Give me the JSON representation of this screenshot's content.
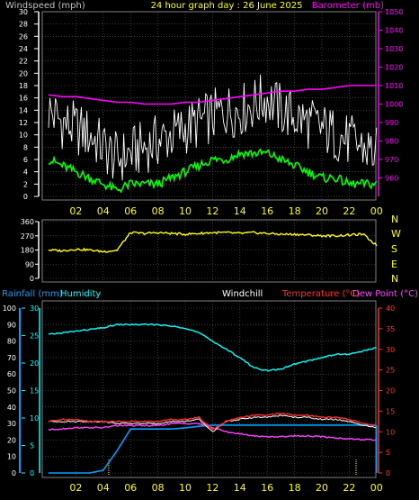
{
  "header": {
    "left_label": "Windspeed (mph)",
    "center_label": "24 hour graph day : 26 June 2025",
    "right_label": "Barometer (mb)"
  },
  "colors": {
    "background": "#000000",
    "grid": "#606060",
    "axis_label": "#ffff00",
    "wind_gust": "#ffffff",
    "wind_avg": "#00ff00",
    "barometer": "#ff00ff",
    "direction": "#ffff00",
    "rain": "#00a0ff",
    "humidity": "#00ffff",
    "windchill": "#ffffff",
    "temperature": "#ff3030",
    "dewpoint": "#ff40ff"
  },
  "chart_data": [
    {
      "type": "line",
      "name": "wind",
      "x_ticks": [
        "02",
        "04",
        "06",
        "08",
        "10",
        "12",
        "14",
        "16",
        "18",
        "20",
        "22",
        "00"
      ],
      "ylim_left": [
        0,
        30
      ],
      "yticks_left": [
        0,
        2,
        4,
        6,
        8,
        10,
        12,
        14,
        16,
        18,
        20,
        22,
        24,
        26,
        28,
        30
      ],
      "ylim_right": [
        950,
        1050
      ],
      "yticks_right": [
        960,
        970,
        980,
        990,
        1000,
        1010,
        1020,
        1030,
        1040,
        1050
      ],
      "x_hours": [
        0,
        1,
        2,
        3,
        4,
        5,
        6,
        7,
        8,
        9,
        10,
        11,
        12,
        13,
        14,
        15,
        16,
        17,
        18,
        19,
        20,
        21,
        22,
        23,
        24
      ],
      "series": [
        {
          "key": "gust",
          "values": [
            14,
            12,
            11,
            10,
            8,
            6,
            7,
            8,
            9,
            10,
            11,
            12,
            13,
            14,
            14,
            15,
            16,
            14,
            13,
            12,
            11,
            10,
            9,
            8,
            7
          ]
        },
        {
          "key": "avg",
          "values": [
            6,
            5,
            4,
            3,
            2,
            1,
            2,
            2,
            2,
            3,
            4,
            5,
            6,
            6,
            7,
            7,
            7,
            6,
            5,
            4,
            3,
            3,
            2,
            2,
            2
          ]
        },
        {
          "key": "barometer",
          "values": [
            1005,
            1004,
            1004,
            1003,
            1002,
            1001,
            1001,
            1000,
            1000,
            1000,
            1001,
            1001,
            1002,
            1003,
            1004,
            1005,
            1006,
            1007,
            1007,
            1008,
            1008,
            1009,
            1010,
            1010,
            1010
          ]
        }
      ],
      "grid": true
    },
    {
      "type": "line",
      "name": "wind_direction",
      "ylim": [
        0,
        360
      ],
      "yticks": [
        0,
        90,
        180,
        270,
        360
      ],
      "compass_labels": [
        "N",
        "W",
        "S",
        "E",
        "N"
      ],
      "x_hours": [
        0,
        1,
        2,
        3,
        4,
        5,
        6,
        7,
        8,
        9,
        10,
        11,
        12,
        13,
        14,
        15,
        16,
        17,
        18,
        19,
        20,
        21,
        22,
        23,
        24
      ],
      "values": [
        180,
        175,
        185,
        180,
        170,
        178,
        290,
        285,
        290,
        285,
        280,
        285,
        290,
        290,
        285,
        290,
        285,
        280,
        280,
        275,
        270,
        270,
        275,
        280,
        210
      ],
      "grid": true
    },
    {
      "type": "line",
      "name": "rain_humidity_temp",
      "labels": {
        "rain": "Rainfall (mm)",
        "humidity": "Humidity",
        "windchill": "Windchill",
        "temperature": "Temperature (°C)",
        "dewpoint": "Dew Point (°C)"
      },
      "ylim_humidity": [
        0,
        100
      ],
      "yticks_humidity": [
        0,
        10,
        20,
        30,
        40,
        50,
        60,
        70,
        80,
        90,
        100
      ],
      "ylim_rain": [
        0,
        30
      ],
      "yticks_rain": [
        0,
        5,
        10,
        15,
        20,
        25,
        30
      ],
      "ylim_temp": [
        0,
        40
      ],
      "yticks_temp": [
        0,
        5,
        10,
        15,
        20,
        25,
        30,
        35,
        40
      ],
      "x_hours": [
        0,
        1,
        2,
        3,
        4,
        5,
        6,
        7,
        8,
        9,
        10,
        11,
        12,
        13,
        14,
        15,
        16,
        17,
        18,
        19,
        20,
        21,
        22,
        23,
        24
      ],
      "series": [
        {
          "key": "humidity",
          "values": [
            84,
            85,
            86,
            87,
            88,
            90,
            90,
            90,
            90,
            89,
            88,
            85,
            80,
            75,
            70,
            64,
            62,
            63,
            66,
            68,
            70,
            72,
            72,
            74,
            76
          ]
        },
        {
          "key": "rain",
          "values": [
            0,
            0,
            0,
            0,
            0.5,
            4,
            8,
            8,
            8,
            8,
            8.2,
            8.5,
            8.7,
            8.7,
            8.7,
            8.7,
            8.7,
            8.7,
            8.7,
            8.7,
            8.7,
            8.7,
            8.7,
            8.7,
            8.7
          ]
        },
        {
          "key": "temperature",
          "values": [
            12.5,
            13,
            13,
            12.5,
            12.5,
            12.5,
            12.5,
            12.5,
            12.5,
            13,
            13,
            13.5,
            10.5,
            12.5,
            13.5,
            14,
            14,
            14.5,
            14,
            14,
            13.5,
            13.5,
            13,
            12,
            11.5
          ]
        },
        {
          "key": "windchill",
          "values": [
            12.5,
            12.5,
            12.5,
            12.5,
            12.5,
            12,
            12,
            12,
            12,
            12.5,
            12.5,
            13,
            10,
            12.5,
            13,
            13.5,
            13.5,
            14,
            13.5,
            13.5,
            13,
            13,
            12.5,
            11.5,
            11
          ]
        },
        {
          "key": "dewpoint",
          "values": [
            10.5,
            10.7,
            11,
            11,
            11,
            11.5,
            11.5,
            11.5,
            11.5,
            12,
            12,
            12,
            11,
            10,
            9.5,
            9,
            8.8,
            8.8,
            9,
            9,
            8.8,
            8.5,
            8.3,
            8.1,
            8
          ]
        }
      ],
      "markers_hours": [
        4.4,
        22.5
      ],
      "grid": true
    }
  ]
}
